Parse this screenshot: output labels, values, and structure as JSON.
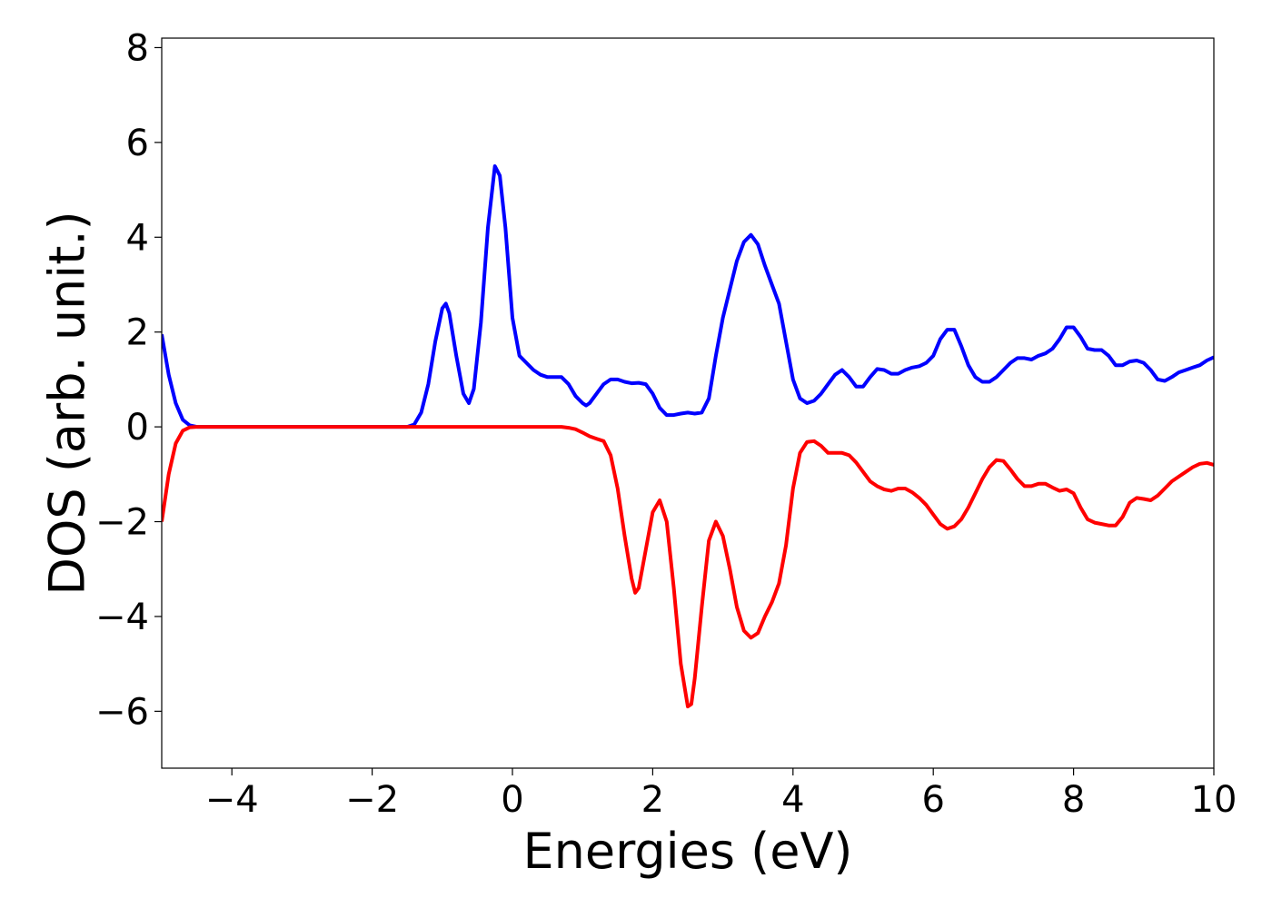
{
  "chart_data": {
    "type": "line",
    "title": "",
    "xlabel": "Energies (eV)",
    "ylabel": "DOS (arb. unit.)",
    "xlim": [
      -5,
      10
    ],
    "ylim": [
      -7.2,
      8.2
    ],
    "xticks": [
      -4,
      -2,
      0,
      2,
      4,
      6,
      8,
      10
    ],
    "xtick_labels": [
      "−4",
      "−2",
      "0",
      "2",
      "4",
      "6",
      "8",
      "10"
    ],
    "yticks": [
      -6,
      -4,
      -2,
      0,
      2,
      4,
      6,
      8
    ],
    "ytick_labels": [
      "−6",
      "−4",
      "−2",
      "0",
      "2",
      "4",
      "6",
      "8"
    ],
    "grid": false,
    "legend": "none",
    "series": [
      {
        "color": "#0000ff",
        "points": [
          [
            -5.0,
            1.95
          ],
          [
            -4.9,
            1.1
          ],
          [
            -4.8,
            0.5
          ],
          [
            -4.7,
            0.15
          ],
          [
            -4.6,
            0.03
          ],
          [
            -4.5,
            0.0
          ],
          [
            -2.0,
            0.0
          ],
          [
            -1.5,
            0.0
          ],
          [
            -1.4,
            0.05
          ],
          [
            -1.3,
            0.3
          ],
          [
            -1.2,
            0.9
          ],
          [
            -1.1,
            1.8
          ],
          [
            -1.0,
            2.5
          ],
          [
            -0.95,
            2.6
          ],
          [
            -0.9,
            2.4
          ],
          [
            -0.8,
            1.5
          ],
          [
            -0.7,
            0.7
          ],
          [
            -0.62,
            0.5
          ],
          [
            -0.55,
            0.8
          ],
          [
            -0.45,
            2.2
          ],
          [
            -0.35,
            4.2
          ],
          [
            -0.25,
            5.5
          ],
          [
            -0.18,
            5.3
          ],
          [
            -0.1,
            4.2
          ],
          [
            0.0,
            2.3
          ],
          [
            0.1,
            1.5
          ],
          [
            0.2,
            1.35
          ],
          [
            0.3,
            1.2
          ],
          [
            0.4,
            1.1
          ],
          [
            0.5,
            1.05
          ],
          [
            0.6,
            1.05
          ],
          [
            0.7,
            1.05
          ],
          [
            0.8,
            0.9
          ],
          [
            0.9,
            0.65
          ],
          [
            1.0,
            0.5
          ],
          [
            1.05,
            0.45
          ],
          [
            1.1,
            0.5
          ],
          [
            1.2,
            0.7
          ],
          [
            1.3,
            0.9
          ],
          [
            1.4,
            1.0
          ],
          [
            1.5,
            1.0
          ],
          [
            1.6,
            0.95
          ],
          [
            1.7,
            0.92
          ],
          [
            1.8,
            0.93
          ],
          [
            1.9,
            0.9
          ],
          [
            2.0,
            0.7
          ],
          [
            2.1,
            0.4
          ],
          [
            2.2,
            0.25
          ],
          [
            2.3,
            0.25
          ],
          [
            2.4,
            0.28
          ],
          [
            2.5,
            0.3
          ],
          [
            2.6,
            0.28
          ],
          [
            2.7,
            0.3
          ],
          [
            2.8,
            0.6
          ],
          [
            2.9,
            1.5
          ],
          [
            3.0,
            2.3
          ],
          [
            3.1,
            2.9
          ],
          [
            3.2,
            3.5
          ],
          [
            3.3,
            3.9
          ],
          [
            3.4,
            4.05
          ],
          [
            3.5,
            3.85
          ],
          [
            3.6,
            3.4
          ],
          [
            3.7,
            3.0
          ],
          [
            3.8,
            2.6
          ],
          [
            3.9,
            1.8
          ],
          [
            4.0,
            1.0
          ],
          [
            4.1,
            0.6
          ],
          [
            4.2,
            0.5
          ],
          [
            4.3,
            0.55
          ],
          [
            4.4,
            0.7
          ],
          [
            4.5,
            0.9
          ],
          [
            4.6,
            1.1
          ],
          [
            4.7,
            1.2
          ],
          [
            4.8,
            1.05
          ],
          [
            4.9,
            0.85
          ],
          [
            5.0,
            0.85
          ],
          [
            5.1,
            1.05
          ],
          [
            5.2,
            1.22
          ],
          [
            5.3,
            1.2
          ],
          [
            5.4,
            1.12
          ],
          [
            5.5,
            1.12
          ],
          [
            5.6,
            1.2
          ],
          [
            5.7,
            1.25
          ],
          [
            5.8,
            1.28
          ],
          [
            5.9,
            1.35
          ],
          [
            6.0,
            1.5
          ],
          [
            6.1,
            1.85
          ],
          [
            6.2,
            2.05
          ],
          [
            6.3,
            2.05
          ],
          [
            6.4,
            1.7
          ],
          [
            6.5,
            1.3
          ],
          [
            6.6,
            1.05
          ],
          [
            6.7,
            0.95
          ],
          [
            6.8,
            0.95
          ],
          [
            6.9,
            1.05
          ],
          [
            7.0,
            1.2
          ],
          [
            7.1,
            1.35
          ],
          [
            7.2,
            1.45
          ],
          [
            7.3,
            1.45
          ],
          [
            7.4,
            1.42
          ],
          [
            7.5,
            1.5
          ],
          [
            7.6,
            1.55
          ],
          [
            7.7,
            1.65
          ],
          [
            7.8,
            1.85
          ],
          [
            7.9,
            2.1
          ],
          [
            8.0,
            2.1
          ],
          [
            8.1,
            1.9
          ],
          [
            8.2,
            1.65
          ],
          [
            8.3,
            1.62
          ],
          [
            8.4,
            1.62
          ],
          [
            8.5,
            1.5
          ],
          [
            8.6,
            1.3
          ],
          [
            8.7,
            1.3
          ],
          [
            8.8,
            1.38
          ],
          [
            8.9,
            1.4
          ],
          [
            9.0,
            1.35
          ],
          [
            9.1,
            1.2
          ],
          [
            9.2,
            1.0
          ],
          [
            9.3,
            0.97
          ],
          [
            9.4,
            1.05
          ],
          [
            9.5,
            1.15
          ],
          [
            9.6,
            1.2
          ],
          [
            9.7,
            1.25
          ],
          [
            9.8,
            1.3
          ],
          [
            9.9,
            1.4
          ],
          [
            10.0,
            1.47
          ]
        ]
      },
      {
        "color": "#ff0000",
        "points": [
          [
            -5.0,
            -2.0
          ],
          [
            -4.9,
            -1.0
          ],
          [
            -4.8,
            -0.35
          ],
          [
            -4.7,
            -0.08
          ],
          [
            -4.6,
            -0.01
          ],
          [
            -4.5,
            0.0
          ],
          [
            0.5,
            0.0
          ],
          [
            0.7,
            0.0
          ],
          [
            0.8,
            -0.02
          ],
          [
            0.9,
            -0.05
          ],
          [
            1.0,
            -0.12
          ],
          [
            1.1,
            -0.2
          ],
          [
            1.2,
            -0.25
          ],
          [
            1.3,
            -0.3
          ],
          [
            1.4,
            -0.6
          ],
          [
            1.5,
            -1.3
          ],
          [
            1.6,
            -2.3
          ],
          [
            1.7,
            -3.2
          ],
          [
            1.75,
            -3.5
          ],
          [
            1.8,
            -3.4
          ],
          [
            1.9,
            -2.6
          ],
          [
            2.0,
            -1.8
          ],
          [
            2.1,
            -1.55
          ],
          [
            2.2,
            -2.0
          ],
          [
            2.3,
            -3.4
          ],
          [
            2.4,
            -5.0
          ],
          [
            2.5,
            -5.9
          ],
          [
            2.55,
            -5.85
          ],
          [
            2.6,
            -5.3
          ],
          [
            2.7,
            -3.8
          ],
          [
            2.8,
            -2.4
          ],
          [
            2.9,
            -2.0
          ],
          [
            3.0,
            -2.3
          ],
          [
            3.1,
            -3.0
          ],
          [
            3.2,
            -3.8
          ],
          [
            3.3,
            -4.3
          ],
          [
            3.4,
            -4.45
          ],
          [
            3.5,
            -4.35
          ],
          [
            3.6,
            -4.0
          ],
          [
            3.7,
            -3.7
          ],
          [
            3.8,
            -3.3
          ],
          [
            3.9,
            -2.5
          ],
          [
            4.0,
            -1.3
          ],
          [
            4.1,
            -0.55
          ],
          [
            4.2,
            -0.32
          ],
          [
            4.3,
            -0.3
          ],
          [
            4.4,
            -0.4
          ],
          [
            4.5,
            -0.55
          ],
          [
            4.6,
            -0.55
          ],
          [
            4.7,
            -0.55
          ],
          [
            4.8,
            -0.6
          ],
          [
            4.9,
            -0.75
          ],
          [
            5.0,
            -0.95
          ],
          [
            5.1,
            -1.15
          ],
          [
            5.2,
            -1.25
          ],
          [
            5.3,
            -1.32
          ],
          [
            5.4,
            -1.35
          ],
          [
            5.5,
            -1.3
          ],
          [
            5.6,
            -1.3
          ],
          [
            5.7,
            -1.38
          ],
          [
            5.8,
            -1.5
          ],
          [
            5.9,
            -1.65
          ],
          [
            6.0,
            -1.85
          ],
          [
            6.1,
            -2.05
          ],
          [
            6.2,
            -2.15
          ],
          [
            6.3,
            -2.1
          ],
          [
            6.4,
            -1.95
          ],
          [
            6.5,
            -1.7
          ],
          [
            6.6,
            -1.4
          ],
          [
            6.7,
            -1.1
          ],
          [
            6.8,
            -0.85
          ],
          [
            6.9,
            -0.7
          ],
          [
            7.0,
            -0.72
          ],
          [
            7.1,
            -0.9
          ],
          [
            7.2,
            -1.1
          ],
          [
            7.3,
            -1.25
          ],
          [
            7.4,
            -1.25
          ],
          [
            7.5,
            -1.2
          ],
          [
            7.6,
            -1.2
          ],
          [
            7.7,
            -1.28
          ],
          [
            7.8,
            -1.35
          ],
          [
            7.9,
            -1.32
          ],
          [
            8.0,
            -1.4
          ],
          [
            8.1,
            -1.7
          ],
          [
            8.2,
            -1.95
          ],
          [
            8.3,
            -2.02
          ],
          [
            8.4,
            -2.05
          ],
          [
            8.5,
            -2.08
          ],
          [
            8.6,
            -2.08
          ],
          [
            8.7,
            -1.9
          ],
          [
            8.8,
            -1.6
          ],
          [
            8.9,
            -1.5
          ],
          [
            9.0,
            -1.52
          ],
          [
            9.1,
            -1.55
          ],
          [
            9.2,
            -1.45
          ],
          [
            9.3,
            -1.3
          ],
          [
            9.4,
            -1.15
          ],
          [
            9.5,
            -1.05
          ],
          [
            9.6,
            -0.95
          ],
          [
            9.7,
            -0.85
          ],
          [
            9.8,
            -0.78
          ],
          [
            9.9,
            -0.76
          ],
          [
            10.0,
            -0.8
          ]
        ]
      }
    ]
  }
}
